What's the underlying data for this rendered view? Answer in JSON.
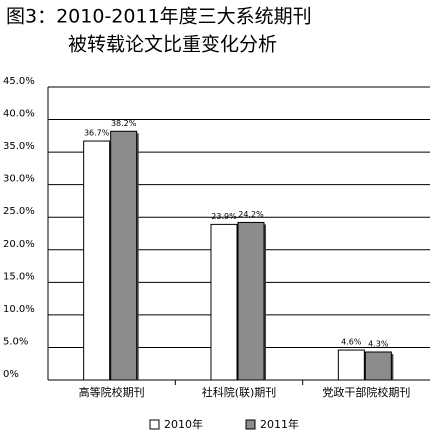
{
  "chart_data": {
    "type": "bar",
    "title": "图3：2010-2011年度三大系统期刊",
    "subtitle": "被转载论文比重变化分析",
    "categories": [
      "高等院校期刊",
      "社科院(联)期刊",
      "党政干部院校期刊"
    ],
    "series": [
      {
        "name": "2010年",
        "color": "#ffffff",
        "values": [
          36.7,
          23.9,
          4.6
        ],
        "value_labels": [
          "36.7%",
          "23.9%",
          "4.6%"
        ]
      },
      {
        "name": "2011年",
        "color": "#8c8c8c",
        "values": [
          38.2,
          24.2,
          4.3
        ],
        "value_labels": [
          "38.2%",
          "24.2%",
          "4.3%"
        ]
      }
    ],
    "ylim": [
      0,
      45
    ],
    "yticks": [
      {
        "value": 0,
        "label": "0%"
      },
      {
        "value": 5,
        "label": "5.0%"
      },
      {
        "value": 10,
        "label": "10.0%"
      },
      {
        "value": 15,
        "label": "15.0%"
      },
      {
        "value": 20,
        "label": "20.0%"
      },
      {
        "value": 25,
        "label": "25.0%"
      },
      {
        "value": 30,
        "label": "30.0%"
      },
      {
        "value": 35,
        "label": "35.0%"
      },
      {
        "value": 40,
        "label": "40.0%"
      },
      {
        "value": 45,
        "label": "45.0%"
      }
    ],
    "grid": true
  }
}
